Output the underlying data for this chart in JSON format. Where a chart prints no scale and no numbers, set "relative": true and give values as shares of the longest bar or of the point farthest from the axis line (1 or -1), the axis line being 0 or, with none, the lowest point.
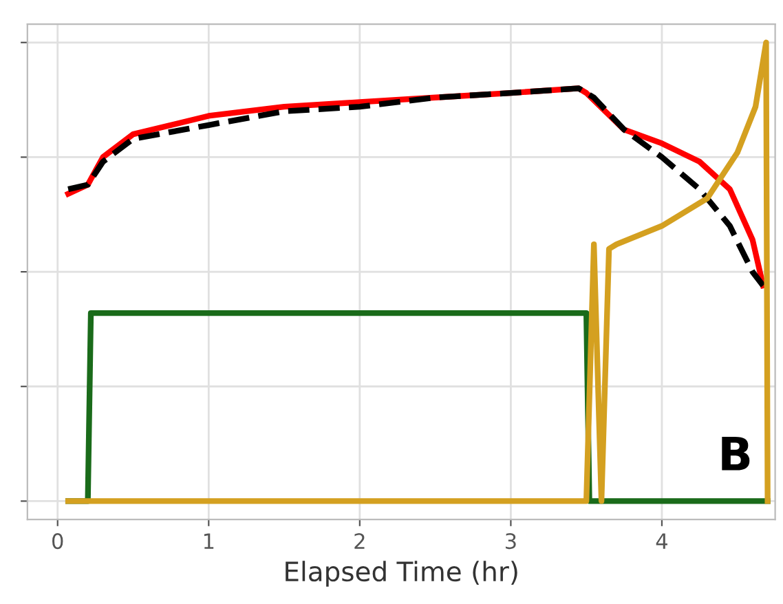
{
  "chart_data": {
    "type": "line",
    "relative": true,
    "xlabel": "Elapsed Time (hr)",
    "xlim": [
      -0.2,
      4.75
    ],
    "xticks": [
      0,
      1,
      2,
      3,
      4
    ],
    "grid": true,
    "legend": false,
    "marker": "none",
    "annotations": [
      "B"
    ],
    "series": [
      {
        "color": "#ff0000",
        "line_style": "solid",
        "x": [
          0.07,
          0.2,
          0.3,
          0.5,
          1.0,
          1.5,
          2.0,
          2.5,
          3.0,
          3.45,
          3.5,
          3.75,
          4.0,
          4.25,
          4.45,
          4.6,
          4.67
        ],
        "values": [
          0.67,
          0.69,
          0.75,
          0.8,
          0.84,
          0.86,
          0.87,
          0.88,
          0.89,
          0.9,
          0.89,
          0.81,
          0.78,
          0.74,
          0.68,
          0.57,
          0.47
        ]
      },
      {
        "color": "#000000",
        "line_style": "dashed",
        "x": [
          0.07,
          0.2,
          0.3,
          0.5,
          1.0,
          1.5,
          2.0,
          2.5,
          3.0,
          3.45,
          3.55,
          3.75,
          4.0,
          4.25,
          4.45,
          4.6,
          4.67
        ],
        "values": [
          0.68,
          0.69,
          0.74,
          0.79,
          0.82,
          0.85,
          0.86,
          0.88,
          0.89,
          0.9,
          0.88,
          0.81,
          0.75,
          0.68,
          0.6,
          0.5,
          0.47
        ]
      },
      {
        "color": "#1a6b1a",
        "line_style": "solid",
        "x": [
          0.07,
          0.2,
          0.22,
          1.0,
          2.0,
          3.0,
          3.5,
          3.52,
          4.0,
          4.7
        ],
        "values": [
          0,
          0,
          0.41,
          0.41,
          0.41,
          0.41,
          0.41,
          0,
          0,
          0
        ]
      },
      {
        "color": "#d4a020",
        "line_style": "solid",
        "x": [
          0.07,
          1.0,
          2.0,
          3.0,
          3.5,
          3.55,
          3.6,
          3.65,
          3.7,
          4.0,
          4.3,
          4.5,
          4.62,
          4.69,
          4.7
        ],
        "values": [
          0,
          0,
          0,
          0,
          0,
          0.56,
          0,
          0.55,
          0.56,
          0.6,
          0.66,
          0.76,
          0.86,
          1,
          0
        ]
      }
    ]
  }
}
